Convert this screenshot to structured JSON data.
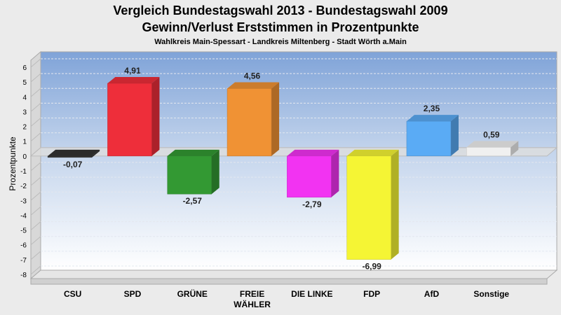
{
  "title": "Vergleich Bundestagswahl 2013 - Bundestagswahl 2009",
  "subtitle": "Gewinn/Verlust Erststimmen in Prozentpunkte",
  "subsubtitle": "Wahlkreis Main-Spessart - Landkreis Miltenberg - Stadt Wörth a.Main",
  "chart_data": {
    "type": "bar",
    "title": "Vergleich Bundestagswahl 2013 - Bundestagswahl 2009",
    "subtitle": "Gewinn/Verlust Erststimmen in Prozentpunkte",
    "ylabel": "Prozentpunkte",
    "xlabel": "",
    "ylim": [
      -8,
      6
    ],
    "yticks": [
      "6",
      "5",
      "4",
      "3",
      "2",
      "1",
      "0",
      "-1",
      "-2",
      "-3",
      "-4",
      "-5",
      "-6",
      "-7",
      "-8"
    ],
    "grid": true,
    "categories": [
      {
        "line1": "CSU",
        "line2": ""
      },
      {
        "line1": "SPD",
        "line2": ""
      },
      {
        "line1": "GRÜNE",
        "line2": ""
      },
      {
        "line1": "FREIE",
        "line2": "WÄHLER"
      },
      {
        "line1": "DIE LINKE",
        "line2": ""
      },
      {
        "line1": "FDP",
        "line2": ""
      },
      {
        "line1": "AfD",
        "line2": ""
      },
      {
        "line1": "Sonstige",
        "line2": ""
      }
    ],
    "values": [
      -0.07,
      4.91,
      -2.57,
      4.56,
      -2.79,
      -6.99,
      2.35,
      0.59
    ],
    "labels": [
      "-0,07",
      "4,91",
      "-2,57",
      "4,56",
      "-2,79",
      "-6,99",
      "2,35",
      "0,59"
    ],
    "colors": [
      "#333333",
      "#ee2e3a",
      "#339933",
      "#f09234",
      "#f233f2",
      "#f5f534",
      "#5aabf5",
      "#f0f0f0"
    ]
  }
}
